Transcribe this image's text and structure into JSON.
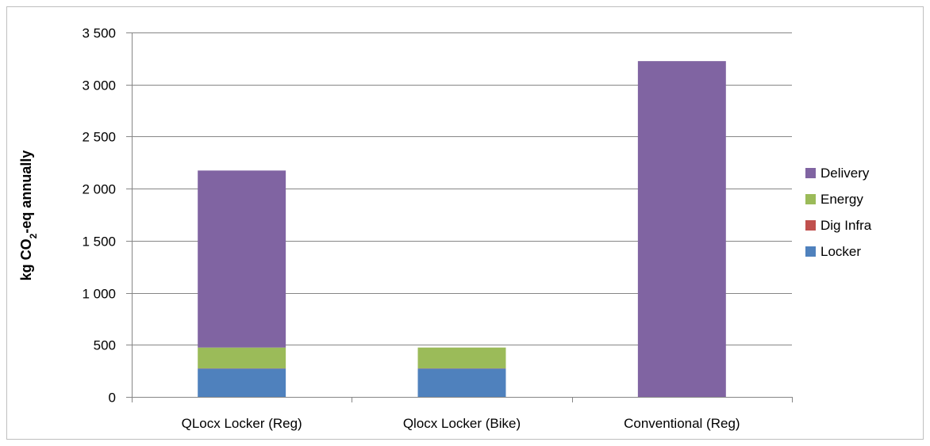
{
  "chart_data": {
    "type": "bar",
    "stacked": true,
    "title": "",
    "xlabel": "",
    "ylabel": {
      "main": "kg CO",
      "subscript": "2",
      "rest": "-eq annually"
    },
    "categories": [
      "QLocx Locker (Reg)",
      "Qlocx Locker (Bike)",
      "Conventional (Reg)"
    ],
    "series": [
      {
        "name": "Locker",
        "color": "#4f81bd",
        "values": [
          272,
          272,
          0
        ]
      },
      {
        "name": "Dig Infra",
        "color": "#c0504d",
        "values": [
          2,
          2,
          0
        ]
      },
      {
        "name": "Energy",
        "color": "#9bbb59",
        "values": [
          200,
          200,
          0
        ]
      },
      {
        "name": "Delivery",
        "color": "#8064a2",
        "values": [
          1700,
          0,
          3225
        ]
      }
    ],
    "ylim": [
      0,
      3500
    ],
    "y_ticks": [
      0,
      500,
      1000,
      1500,
      2000,
      2500,
      3000,
      3500
    ],
    "y_tick_labels": [
      "0",
      "500",
      "1 000",
      "1 500",
      "2 000",
      "2 500",
      "3 000",
      "3 500"
    ],
    "legend_order": [
      "Delivery",
      "Energy",
      "Dig Infra",
      "Locker"
    ],
    "legend_position": "right",
    "grid": true,
    "gridline_color": "#868686"
  }
}
